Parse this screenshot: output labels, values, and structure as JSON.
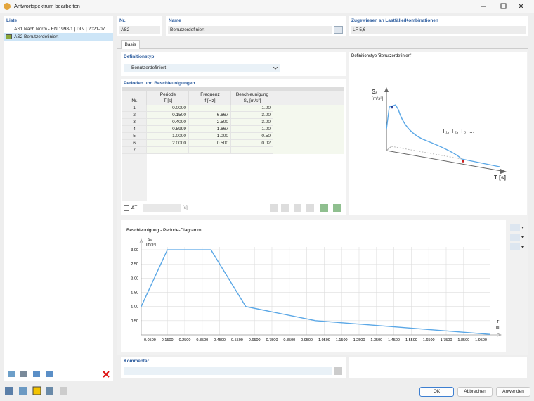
{
  "window": {
    "title": "Antwortspektrum bearbeiten"
  },
  "list": {
    "header": "Liste",
    "items": [
      {
        "id": "AS1",
        "label": "Nach Norm - EN 1998-1 | DIN | 2021-07"
      },
      {
        "id": "AS2",
        "label": "Benutzerdefiniert"
      }
    ]
  },
  "fields": {
    "nr_label": "Nr.",
    "nr": "AS2",
    "name_label": "Name",
    "name": "Benutzerdefiniert",
    "assigned_label": "Zugewiesen an Lastfälle/Kombinationen",
    "assigned": "LF 5,6"
  },
  "tabs": [
    "Basis"
  ],
  "definition": {
    "header": "Definitionstyp",
    "value": "Benutzerdefiniert"
  },
  "table": {
    "header": "Perioden und Beschleunigungen",
    "columns": [
      [
        "Nr."
      ],
      [
        "Periode",
        "T [s]"
      ],
      [
        "Frequenz",
        "f [Hz]"
      ],
      [
        "Beschleunigung",
        "Sₐ [m/s²]"
      ]
    ],
    "rows": [
      [
        "1",
        "0.0000",
        null,
        "1.00"
      ],
      [
        "2",
        "0.1500",
        "6.667",
        "3.00"
      ],
      [
        "3",
        "0.4000",
        "2.500",
        "3.00"
      ],
      [
        "4",
        "0.5999",
        "1.667",
        "1.00"
      ],
      [
        "5",
        "1.0000",
        "1.000",
        "0.50"
      ],
      [
        "6",
        "2.0000",
        "0.500",
        "0.02"
      ],
      [
        "7",
        null,
        null,
        null
      ]
    ]
  },
  "delta_t": {
    "label": "ΔT",
    "unit": "[s]"
  },
  "preview": {
    "title": "Definitionstyp 'Benutzerdefiniert'",
    "y_label": "Sₐ",
    "y_unit": "[m/s²]",
    "periods": "T₁, T₂, T₃, ...",
    "x_label": "T [s]"
  },
  "chart_data": {
    "type": "line",
    "title": "Beschleunigung - Periode-Diagramm",
    "y_label": "Sₐ",
    "y_unit": "[m/s²]",
    "x_label": "T",
    "x_unit": "[s]",
    "x": [
      0,
      0.15,
      0.4,
      0.5999,
      1,
      2
    ],
    "values": [
      1,
      3,
      3,
      1,
      0.5,
      0.02
    ],
    "color": "#5aa7e6",
    "xlim": [
      0,
      2
    ],
    "ylim": [
      0,
      3.3
    ],
    "grid": true,
    "xticks": [
      {
        "value": 0.05,
        "label": "0.0500"
      },
      {
        "value": 0.15,
        "label": "0.1500"
      },
      {
        "value": 0.25,
        "label": "0.2500"
      },
      {
        "value": 0.35,
        "label": "0.3500"
      },
      {
        "value": 0.45,
        "label": "0.4500"
      },
      {
        "value": 0.55,
        "label": "0.5500"
      },
      {
        "value": 0.65,
        "label": "0.6500"
      },
      {
        "value": 0.75,
        "label": "0.7500"
      },
      {
        "value": 0.85,
        "label": "0.8500"
      },
      {
        "value": 0.95,
        "label": "0.9500"
      },
      {
        "value": 1.05,
        "label": "1.0500"
      },
      {
        "value": 1.15,
        "label": "1.1500"
      },
      {
        "value": 1.25,
        "label": "1.2500"
      },
      {
        "value": 1.35,
        "label": "1.3500"
      },
      {
        "value": 1.45,
        "label": "1.4500"
      },
      {
        "value": 1.55,
        "label": "1.5500"
      },
      {
        "value": 1.65,
        "label": "1.6500"
      },
      {
        "value": 1.75,
        "label": "1.7500"
      },
      {
        "value": 1.85,
        "label": "1.8500"
      },
      {
        "value": 1.95,
        "label": "1.9500"
      }
    ],
    "yticks": [
      {
        "value": 0.5,
        "label": "0.50"
      },
      {
        "value": 1,
        "label": "1.00"
      },
      {
        "value": 1.5,
        "label": "1.50"
      },
      {
        "value": 2,
        "label": "2.00"
      },
      {
        "value": 2.5,
        "label": "2.50"
      },
      {
        "value": 3,
        "label": "3.00"
      }
    ]
  },
  "comment": {
    "header": "Kommentar"
  },
  "buttons": [
    "OK",
    "Abbrechen",
    "Anwenden"
  ]
}
